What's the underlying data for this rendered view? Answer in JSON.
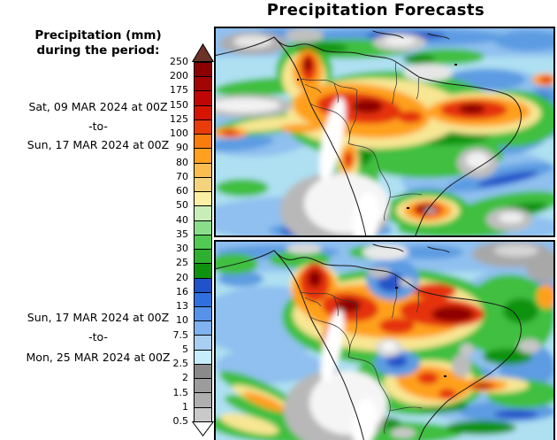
{
  "title": "Precipitation Forecasts",
  "left_panel": {
    "heading": {
      "line1": "Precipitation (mm)",
      "line2": "during the period:"
    },
    "period1": {
      "start": "Sat, 09 MAR 2024 at 00Z",
      "separator": "-to-",
      "end": "Sun, 17 MAR 2024 at 00Z"
    },
    "period2": {
      "start": "Sun, 17 MAR 2024 at 00Z",
      "separator": "-to-",
      "end": "Mon, 25 MAR 2024 at 00Z"
    }
  },
  "colorbar": {
    "levels": [
      "250",
      "200",
      "175",
      "150",
      "125",
      "100",
      "90",
      "80",
      "70",
      "60",
      "50",
      "40",
      "35",
      "30",
      "25",
      "20",
      "16",
      "13",
      "10",
      "7.5",
      "5",
      "2.5",
      "2",
      "1.5",
      "1",
      "0.5"
    ],
    "segment_colors": [
      "#8B0000",
      "#A30505",
      "#C00505",
      "#D51500",
      "#EA3C0A",
      "#FA7D0A",
      "#FFA01E",
      "#FBBE4E",
      "#F4D37C",
      "#FAEFA2",
      "#C8EEB8",
      "#8ADE8A",
      "#52C952",
      "#2FAF2F",
      "#0F930F",
      "#2153C8",
      "#2F70DE",
      "#5592E8",
      "#7FB2EF",
      "#A8CEF2",
      "#C5EDFA",
      "#8A8A8A",
      "#9C9C9C",
      "#AFAFAF",
      "#C9C9C9"
    ],
    "overflow_arrow_color": "#6B3328",
    "underflow_arrow_color": "#FFFFFF"
  },
  "figure": {
    "panels": 2
  }
}
